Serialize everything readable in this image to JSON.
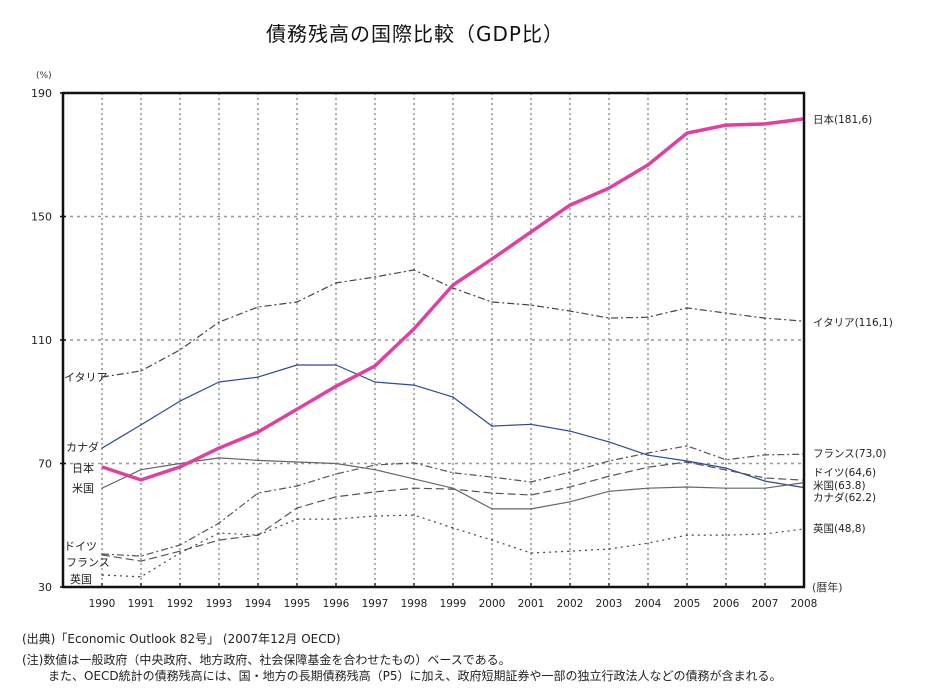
{
  "chart_data": {
    "type": "line",
    "title": "債務残高の国際比較（GDP比）",
    "ylabel": "(%)",
    "xlabel": "(暦年)",
    "ylim": [
      30,
      190
    ],
    "yticks": [
      30,
      70,
      110,
      150,
      190
    ],
    "grid": true,
    "x": [
      "1990",
      "1991",
      "1992",
      "1993",
      "1994",
      "1995",
      "1996",
      "1997",
      "1998",
      "1999",
      "2000",
      "2001",
      "2002",
      "2003",
      "2004",
      "2005",
      "2006",
      "2007",
      "2008"
    ],
    "series": [
      {
        "name": "日本",
        "end_label": "日本(181,6)",
        "color": "#e040a0",
        "style": "solid-thick",
        "values": [
          68.9,
          64.7,
          68.9,
          75.0,
          80.2,
          87.6,
          95.0,
          101.6,
          113.6,
          127.8,
          136.2,
          145.0,
          153.7,
          159.2,
          166.7,
          177.0,
          179.6,
          180.0,
          181.6
        ]
      },
      {
        "name": "イタリア",
        "end_label": "イタリア(116,1)",
        "color": "#444444",
        "style": "dashdot",
        "values": [
          98.0,
          100.0,
          106.8,
          115.8,
          120.7,
          122.3,
          128.5,
          130.4,
          132.7,
          126.8,
          122.3,
          121.3,
          119.4,
          117.1,
          117.4,
          120.4,
          118.7,
          117.1,
          116.1
        ]
      },
      {
        "name": "フランス",
        "end_label": "フランス(73,0)",
        "color": "#555555",
        "style": "dashdot",
        "values": [
          40.7,
          40.0,
          43.6,
          50.7,
          60.4,
          62.7,
          66.6,
          69.5,
          70.2,
          67.0,
          65.6,
          64.0,
          67.2,
          70.8,
          73.4,
          75.7,
          71.2,
          72.8,
          73.0
        ]
      },
      {
        "name": "ドイツ",
        "end_label": "ドイツ(64,6)",
        "color": "#555555",
        "style": "dash",
        "values": [
          40.4,
          38.4,
          41.6,
          45.2,
          46.8,
          55.6,
          59.2,
          60.8,
          62.0,
          61.7,
          60.4,
          59.8,
          62.4,
          65.9,
          68.8,
          70.5,
          67.9,
          65.3,
          64.6
        ]
      },
      {
        "name": "米国",
        "end_label": "米国(63.8)",
        "color": "#666666",
        "style": "solid",
        "values": [
          62.0,
          68.0,
          70.0,
          71.8,
          71.0,
          70.5,
          70.0,
          68.0,
          65.0,
          62.0,
          55.3,
          55.3,
          57.6,
          61.0,
          62.0,
          62.4,
          62.0,
          62.0,
          63.8
        ]
      },
      {
        "name": "カナダ",
        "end_label": "カナダ(62.2)",
        "color": "#2a4a9a",
        "style": "solid",
        "values": [
          75.0,
          82.5,
          90.2,
          96.4,
          98.0,
          101.9,
          101.9,
          96.4,
          95.4,
          91.5,
          82.1,
          82.7,
          80.5,
          77.0,
          72.7,
          70.8,
          68.5,
          64.3,
          62.2
        ]
      },
      {
        "name": "英国",
        "end_label": "英国(48,8)",
        "color": "#444444",
        "style": "dot",
        "values": [
          33.9,
          33.3,
          41.0,
          47.5,
          46.8,
          52.0,
          52.0,
          53.0,
          53.3,
          49.1,
          45.2,
          41.0,
          41.6,
          42.3,
          44.2,
          46.8,
          46.8,
          47.2,
          48.8
        ]
      }
    ],
    "start_labels": [
      "イタリア",
      "カナダ",
      "日本",
      "米国",
      "ドイツ",
      "フランス",
      "英国"
    ]
  },
  "notes": {
    "source": "(出典)「Economic Outlook 82号」 (2007年12月 OECD)",
    "note1": "(注)数値は一般政府（中央政府、地方政府、社会保障基金を合わせたもの）ベースである。",
    "note2": "また、OECD統計の債務残高には、国・地方の長期債務残高（P5）に加え、政府短期証券や一部の独立行政法人などの債務が含まれる。"
  }
}
